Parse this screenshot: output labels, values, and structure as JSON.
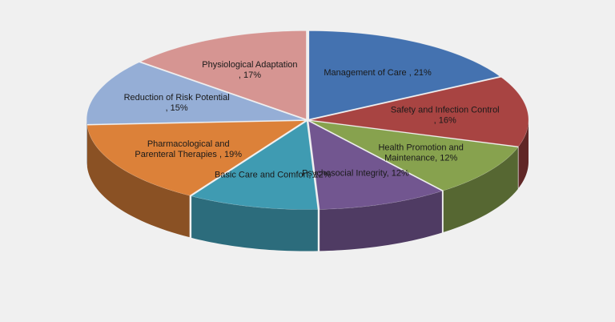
{
  "chart_data": {
    "type": "pie",
    "title": "",
    "slices": [
      {
        "label_lines": [
          "Management of Care , 21%"
        ],
        "value": 21,
        "color": "#4472b0"
      },
      {
        "label_lines": [
          "Safety and Infection Control",
          ", 16%"
        ],
        "value": 16,
        "color": "#a84442"
      },
      {
        "label_lines": [
          "Health Promotion and",
          "Maintenance, 12%"
        ],
        "value": 12,
        "color": "#87a24e"
      },
      {
        "label_lines": [
          "Psychosocial Integrity, 12%"
        ],
        "value": 12,
        "color": "#725690"
      },
      {
        "label_lines": [
          "Basic Care and Comfort, 12%"
        ],
        "value": 12,
        "color": "#3f9bb2"
      },
      {
        "label_lines": [
          "Pharmacological and",
          "Parenteral Therapies , 19%"
        ],
        "value": 19,
        "color": "#dc8139"
      },
      {
        "label_lines": [
          "Reduction of Risk Potential",
          ", 15%"
        ],
        "value": 15,
        "color": "#95aed6"
      },
      {
        "label_lines": [
          "Physiological Adaptation",
          ", 17%"
        ],
        "value": 17,
        "color": "#d69592"
      }
    ],
    "legend": "none",
    "style": "3d-exploded-pie"
  }
}
